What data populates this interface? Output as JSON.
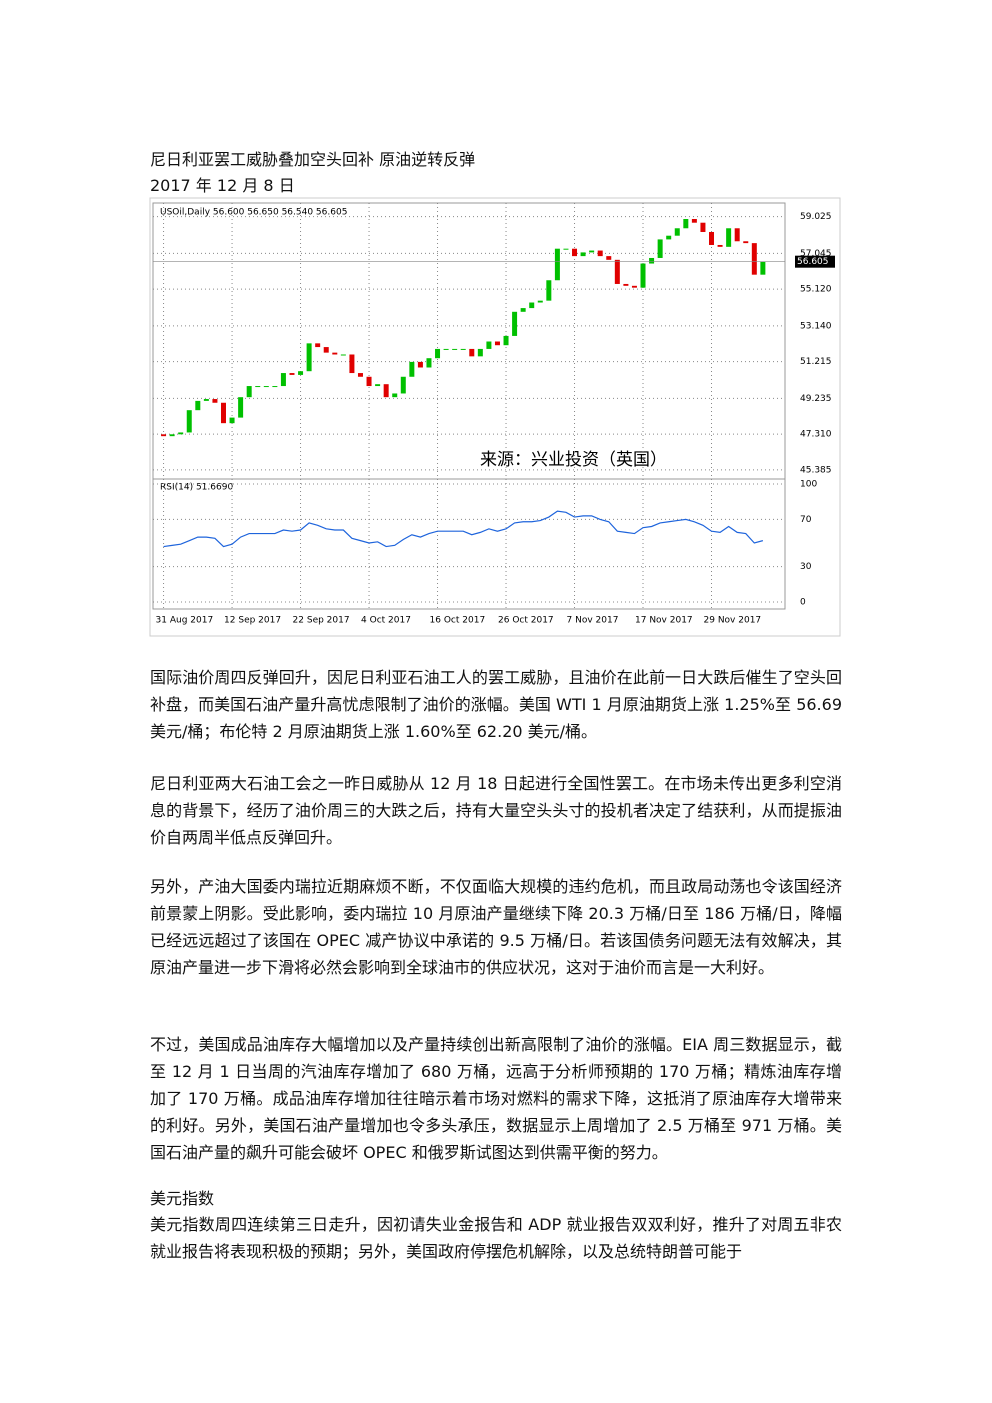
{
  "header": {
    "title": "尼日利亚罢工威胁叠加空头回补 原油逆转反弹",
    "date": "2017 年 12 月 8 日"
  },
  "chart_data": {
    "type": "candlestick",
    "legend_text": "USOil,Daily  56.600 56.650 56.540 56.605",
    "current_price": "56.605",
    "annotation": "来源：兴业投资（英国）",
    "open": [
      47.3,
      47.2,
      47.3,
      47.4,
      48.6,
      49.1,
      49.2,
      49.0,
      47.9,
      48.2,
      49.3,
      49.9,
      49.9,
      49.9,
      49.9,
      50.6,
      50.5,
      50.7,
      52.2,
      52.0,
      51.7,
      51.6,
      51.6,
      50.6,
      50.4,
      49.9,
      50.0,
      49.3,
      49.5,
      50.4,
      51.2,
      50.9,
      51.4,
      51.9,
      51.9,
      51.9,
      51.9,
      51.5,
      51.9,
      52.3,
      52.1,
      52.6,
      53.9,
      54.1,
      54.4,
      54.5,
      55.6,
      57.3,
      57.3,
      56.9,
      57.1,
      57.2,
      56.9,
      56.7,
      55.4,
      55.3,
      55.2,
      56.5,
      56.8,
      57.8,
      58.0,
      58.4,
      58.9,
      58.7,
      58.2,
      57.5,
      57.4,
      58.4,
      57.7,
      57.6,
      55.9
    ],
    "close": [
      47.2,
      47.3,
      47.4,
      48.6,
      49.1,
      49.2,
      49.0,
      47.9,
      48.2,
      49.3,
      49.9,
      49.9,
      49.9,
      49.9,
      50.6,
      50.5,
      50.7,
      52.2,
      52.0,
      51.7,
      51.6,
      51.6,
      50.6,
      50.4,
      49.9,
      50.0,
      49.3,
      49.5,
      50.4,
      51.2,
      50.9,
      51.4,
      51.9,
      51.9,
      51.9,
      51.9,
      51.5,
      51.9,
      52.3,
      52.1,
      52.6,
      53.9,
      54.1,
      54.4,
      54.5,
      55.6,
      57.3,
      57.3,
      56.9,
      57.1,
      57.2,
      56.9,
      56.7,
      55.4,
      55.3,
      55.2,
      56.5,
      56.8,
      57.8,
      58.0,
      58.4,
      58.9,
      58.7,
      58.2,
      57.5,
      57.4,
      58.4,
      57.7,
      57.6,
      55.9,
      56.6
    ],
    "up_color": "#00c000",
    "down_color": "#e00000",
    "xlim": [
      -1,
      72
    ],
    "xticks": [
      {
        "value": 0,
        "label": "31 Aug 2017"
      },
      {
        "value": 8,
        "label": "12 Sep 2017"
      },
      {
        "value": 16,
        "label": "22 Sep 2017"
      },
      {
        "value": 24,
        "label": "4 Oct 2017"
      },
      {
        "value": 32,
        "label": "16 Oct 2017"
      },
      {
        "value": 40,
        "label": "26 Oct 2017"
      },
      {
        "value": 48,
        "label": "7 Nov 2017"
      },
      {
        "value": 56,
        "label": "17 Nov 2017"
      },
      {
        "value": 64,
        "label": "29 Nov 2017"
      }
    ],
    "ylim": [
      45.0,
      59.6
    ],
    "yticks": [
      59.025,
      57.045,
      {
        "value": 55.12,
        "label": "55.120"
      },
      {
        "value": 53.14,
        "label": "53.140"
      },
      51.215,
      49.235,
      {
        "value": 47.31,
        "label": "47.310"
      },
      45.385
    ],
    "rsi": {
      "label": "RSI(14) 51.6690",
      "color": "#1e64dc",
      "ylim": [
        0,
        100
      ],
      "yticks": [
        100,
        70,
        30,
        0
      ],
      "values": [
        47,
        48,
        49,
        52,
        55,
        55,
        54,
        47,
        49,
        55,
        58,
        58,
        58,
        58,
        61,
        60,
        61,
        67,
        65,
        62,
        61,
        61,
        54,
        52,
        50,
        51,
        47,
        48,
        53,
        57,
        55,
        58,
        60,
        60,
        60,
        60,
        57,
        59,
        62,
        60,
        62,
        67,
        68,
        68,
        69,
        72,
        77,
        76,
        72,
        73,
        73,
        70,
        68,
        60,
        59,
        58,
        63,
        64,
        67,
        68,
        69,
        70,
        68,
        65,
        60,
        59,
        64,
        59,
        58,
        50,
        52
      ]
    }
  },
  "paragraphs": [
    "国际油价周四反弹回升，因尼日利亚石油工人的罢工威胁，且油价在此前一日大跌后催生了空头回补盘，而美国石油产量升高忧虑限制了油价的涨幅。美国 WTI 1 月原油期货上涨 1.25%至 56.69 美元/桶；布伦特 2 月原油期货上涨 1.60%至 62.20 美元/桶。",
    "尼日利亚两大石油工会之一昨日威胁从 12 月 18 日起进行全国性罢工。在市场未传出更多利空消息的背景下，经历了油价周三的大跌之后，持有大量空头头寸的投机者决定了结获利，从而提振油价自两周半低点反弹回升。",
    "另外，产油大国委内瑞拉近期麻烦不断，不仅面临大规模的违约危机，而且政局动荡也令该国经济前景蒙上阴影。受此影响，委内瑞拉 10 月原油产量继续下降 20.3 万桶/日至 186 万桶/日，降幅已经远远超过了该国在 OPEC 减产协议中承诺的 9.5 万桶/日。若该国债务问题无法有效解决，其原油产量进一步下滑将必然会影响到全球油市的供应状况，这对于油价而言是一大利好。",
    "不过，美国成品油库存大幅增加以及产量持续创出新高限制了油价的涨幅。EIA 周三数据显示，截至 12 月 1 日当周的汽油库存增加了 680 万桶，远高于分析师预期的 170 万桶；精炼油库存增加了 170 万桶。成品油库存增加往往暗示着市场对燃料的需求下降，这抵消了原油库存大增带来的利好。另外，美国石油产量增加也令多头承压，数据显示上周增加了 2.5 万桶至 971 万桶。美国石油产量的飙升可能会破坏 OPEC 和俄罗斯试图达到供需平衡的努力。"
  ],
  "section": {
    "heading": "美元指数",
    "paragraph": "美元指数周四连续第三日走升，因初请失业金报告和 ADP 就业报告双双利好，推升了对周五非农就业报告将表现积极的预期；另外，美国政府停摆危机解除，以及总统特朗普可能于"
  }
}
